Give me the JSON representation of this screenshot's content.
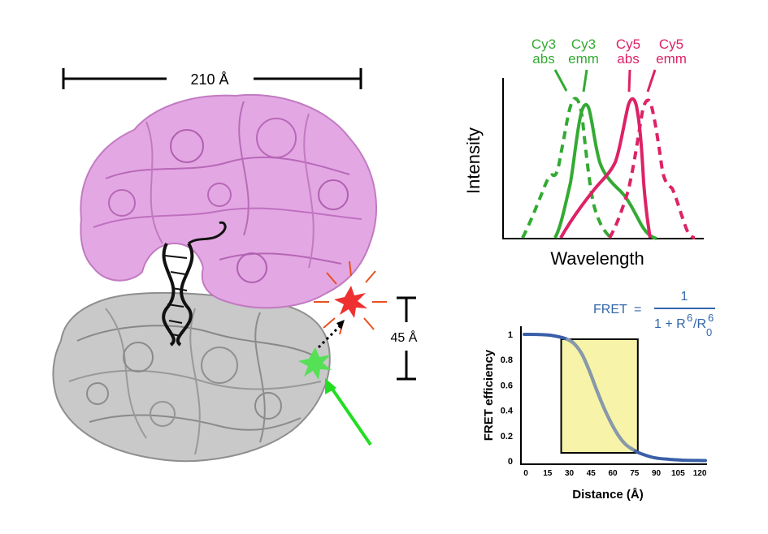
{
  "structure": {
    "width_label": "210 Å",
    "height_label": "45 Å",
    "colors": {
      "large_subunit": "#d98fd9",
      "small_subunit": "#a9a9a9",
      "rna": "#111111",
      "donor_star": "#44dd44",
      "acceptor_star": "#ee3030",
      "excitation_arrow": "#22dd22"
    }
  },
  "spectra": {
    "labels": [
      {
        "line1": "Cy3",
        "line2": "abs",
        "color": "#33aa33"
      },
      {
        "line1": "Cy3",
        "line2": "emm",
        "color": "#33aa33"
      },
      {
        "line1": "Cy5",
        "line2": "abs",
        "color": "#dd2266"
      },
      {
        "line1": "Cy5",
        "line2": "emm",
        "color": "#dd2266"
      }
    ],
    "ylabel": "Intensity",
    "xlabel": "Wavelength"
  },
  "fret": {
    "formula_lhs": "FRET",
    "formula_eq": "=",
    "numerator": "1",
    "denominator_prefix": "1 + R",
    "denominator_exp1": "6",
    "denominator_mid": "/R",
    "denominator_sub": "0",
    "denominator_exp2": "6",
    "formula_color": "#3366aa"
  },
  "chart_data": {
    "type": "line",
    "xlabel": "Distance (Å)",
    "ylabel": "FRET efficiency",
    "x_ticks": [
      "0",
      "15",
      "30",
      "45",
      "60",
      "75",
      "90",
      "105",
      "120"
    ],
    "y_ticks": [
      "0",
      "0.2",
      "0.4",
      "0.6",
      "0.8",
      "1"
    ],
    "xlim": [
      0,
      125
    ],
    "ylim": [
      0,
      1
    ],
    "R0": 52,
    "x": [
      0,
      10,
      20,
      30,
      35,
      40,
      45,
      50,
      55,
      60,
      65,
      70,
      75,
      80,
      90,
      100,
      110,
      120,
      125
    ],
    "y": [
      1.0,
      0.999,
      0.99,
      0.96,
      0.92,
      0.84,
      0.71,
      0.56,
      0.42,
      0.3,
      0.2,
      0.13,
      0.09,
      0.06,
      0.025,
      0.013,
      0.006,
      0.004,
      0.003
    ],
    "highlight_range": [
      30,
      75
    ],
    "series_color": "#3a5fa8",
    "highlight_color": "#f7f3a8"
  }
}
